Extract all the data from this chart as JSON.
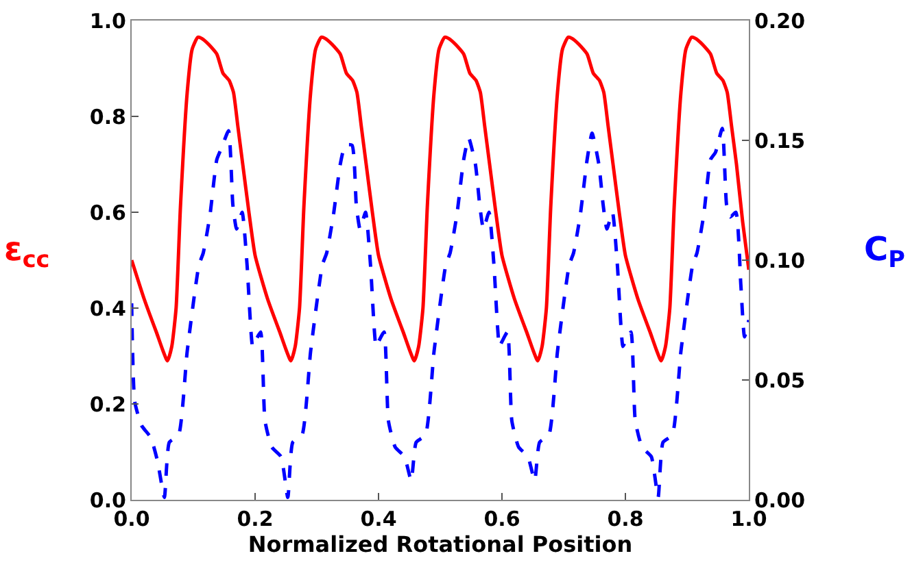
{
  "chart_data": {
    "type": "line",
    "xlabel": "Normalized Rotational Position",
    "ylabel": "ε$_{cc}$",
    "y2label": "C$_{P}$",
    "xlim": [
      0,
      1
    ],
    "xticks": [
      {
        "value": 0,
        "label": "0.0"
      },
      {
        "value": 0.2,
        "label": "0.2"
      },
      {
        "value": 0.4,
        "label": "0.4"
      },
      {
        "value": 0.6,
        "label": "0.6"
      },
      {
        "value": 0.8,
        "label": "0.8"
      },
      {
        "value": 1,
        "label": "1.0"
      }
    ],
    "ylim": [
      0,
      1
    ],
    "yticks": [
      {
        "value": 0,
        "label": "0.0"
      },
      {
        "value": 0.2,
        "label": "0.2"
      },
      {
        "value": 0.4,
        "label": "0.4"
      },
      {
        "value": 0.6,
        "label": "0.6"
      },
      {
        "value": 0.8,
        "label": "0.8"
      },
      {
        "value": 1,
        "label": "1.0"
      }
    ],
    "y2lim": [
      0,
      0.2
    ],
    "y2ticks": [
      {
        "value": 0,
        "label": "0.00"
      },
      {
        "value": 0.05,
        "label": "0.05"
      },
      {
        "value": 0.1,
        "label": "0.10"
      },
      {
        "value": 0.15,
        "label": "0.15"
      },
      {
        "value": 0.2,
        "label": "0.20"
      }
    ],
    "tick_labels": "xy",
    "series": [
      {
        "color": "#ff0000",
        "line_style": "solid",
        "x": [
          0,
          0.02,
          0.04,
          0.058,
          0.065,
          0.072,
          0.079,
          0.09,
          0.098,
          0.107,
          0.113,
          0.125,
          0.138,
          0.148,
          0.158,
          0.165,
          0.172,
          0.18,
          0.19,
          0.2,
          0.22,
          0.24,
          0.258,
          0.265,
          0.272,
          0.279,
          0.29,
          0.298,
          0.307,
          0.313,
          0.325,
          0.338,
          0.348,
          0.358,
          0.365,
          0.372,
          0.38,
          0.39,
          0.4,
          0.42,
          0.44,
          0.458,
          0.465,
          0.472,
          0.479,
          0.49,
          0.498,
          0.507,
          0.513,
          0.525,
          0.538,
          0.548,
          0.558,
          0.565,
          0.572,
          0.58,
          0.59,
          0.6,
          0.62,
          0.64,
          0.658,
          0.665,
          0.672,
          0.679,
          0.69,
          0.698,
          0.707,
          0.713,
          0.725,
          0.738,
          0.748,
          0.758,
          0.765,
          0.772,
          0.78,
          0.79,
          0.8,
          0.82,
          0.84,
          0.858,
          0.865,
          0.872,
          0.879,
          0.89,
          0.898,
          0.907,
          0.913,
          0.925,
          0.938,
          0.948,
          0.958,
          0.965,
          0.972,
          0.98,
          0.99,
          1
        ],
        "values": [
          0.5,
          0.42,
          0.35,
          0.29,
          0.32,
          0.4,
          0.61,
          0.85,
          0.94,
          0.965,
          0.963,
          0.95,
          0.93,
          0.89,
          0.875,
          0.85,
          0.78,
          0.7,
          0.6,
          0.51,
          0.42,
          0.35,
          0.29,
          0.32,
          0.4,
          0.61,
          0.85,
          0.94,
          0.965,
          0.963,
          0.95,
          0.93,
          0.89,
          0.875,
          0.85,
          0.78,
          0.7,
          0.6,
          0.51,
          0.42,
          0.35,
          0.29,
          0.32,
          0.4,
          0.61,
          0.85,
          0.94,
          0.965,
          0.963,
          0.95,
          0.93,
          0.89,
          0.875,
          0.85,
          0.78,
          0.7,
          0.6,
          0.51,
          0.42,
          0.35,
          0.29,
          0.32,
          0.4,
          0.61,
          0.85,
          0.94,
          0.965,
          0.963,
          0.95,
          0.93,
          0.89,
          0.875,
          0.85,
          0.78,
          0.7,
          0.6,
          0.51,
          0.42,
          0.35,
          0.29,
          0.32,
          0.4,
          0.61,
          0.85,
          0.94,
          0.965,
          0.963,
          0.95,
          0.93,
          0.89,
          0.875,
          0.85,
          0.78,
          0.7,
          0.58,
          0.48
        ]
      },
      {
        "color": "#0000ff",
        "line_style": "dashed",
        "axis": "y2",
        "x": [
          0,
          0.005,
          0.016,
          0.031,
          0.042,
          0.053,
          0.061,
          0.076,
          0.09,
          0.109,
          0.116,
          0.127,
          0.138,
          0.146,
          0.157,
          0.164,
          0.17,
          0.179,
          0.187,
          0.196,
          0.2,
          0.209,
          0.216,
          0.227,
          0.242,
          0.253,
          0.261,
          0.276,
          0.29,
          0.309,
          0.316,
          0.327,
          0.338,
          0.346,
          0.357,
          0.364,
          0.37,
          0.379,
          0.387,
          0.396,
          0.4,
          0.409,
          0.416,
          0.427,
          0.442,
          0.453,
          0.461,
          0.476,
          0.49,
          0.509,
          0.516,
          0.527,
          0.538,
          0.546,
          0.557,
          0.564,
          0.57,
          0.579,
          0.587,
          0.596,
          0.6,
          0.609,
          0.616,
          0.627,
          0.642,
          0.653,
          0.661,
          0.676,
          0.69,
          0.709,
          0.716,
          0.727,
          0.738,
          0.746,
          0.757,
          0.764,
          0.77,
          0.779,
          0.787,
          0.796,
          0.8,
          0.809,
          0.816,
          0.827,
          0.842,
          0.853,
          0.861,
          0.876,
          0.89,
          0.909,
          0.916,
          0.927,
          0.938,
          0.946,
          0.957,
          0.964,
          0.97,
          0.979,
          0.987,
          0.993,
          1
        ],
        "values": [
          0.082,
          0.041,
          0.031,
          0.026,
          0.016,
          0.001,
          0.024,
          0.027,
          0.062,
          0.098,
          0.103,
          0.119,
          0.142,
          0.147,
          0.154,
          0.123,
          0.113,
          0.12,
          0.098,
          0.064,
          0.066,
          0.07,
          0.033,
          0.022,
          0.018,
          0.001,
          0.024,
          0.027,
          0.062,
          0.098,
          0.103,
          0.119,
          0.14,
          0.148,
          0.148,
          0.123,
          0.113,
          0.12,
          0.098,
          0.064,
          0.066,
          0.07,
          0.033,
          0.022,
          0.018,
          0.008,
          0.024,
          0.027,
          0.062,
          0.098,
          0.103,
          0.119,
          0.142,
          0.151,
          0.14,
          0.123,
          0.113,
          0.12,
          0.098,
          0.064,
          0.066,
          0.07,
          0.033,
          0.022,
          0.018,
          0.008,
          0.024,
          0.027,
          0.062,
          0.098,
          0.103,
          0.119,
          0.142,
          0.153,
          0.14,
          0.123,
          0.113,
          0.12,
          0.098,
          0.064,
          0.066,
          0.07,
          0.033,
          0.022,
          0.018,
          0.001,
          0.024,
          0.027,
          0.062,
          0.098,
          0.103,
          0.119,
          0.142,
          0.145,
          0.155,
          0.123,
          0.118,
          0.12,
          0.09,
          0.068,
          0.075
        ]
      }
    ]
  }
}
